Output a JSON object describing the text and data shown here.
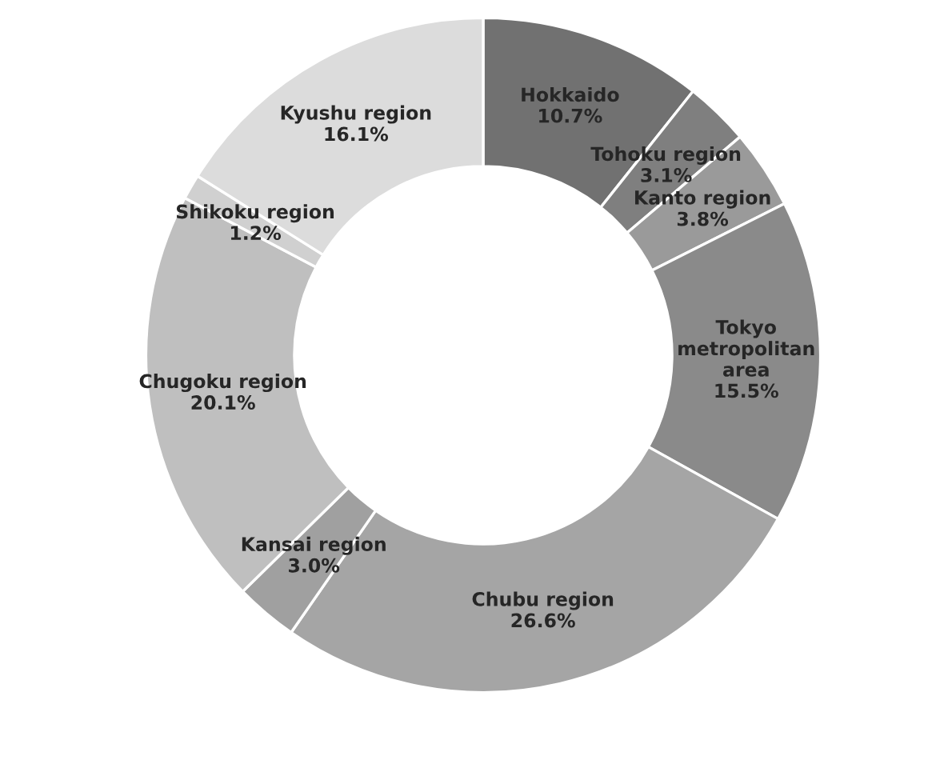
{
  "chart_data": {
    "type": "donut",
    "categories": [
      "Hokkaido",
      "Tohoku region",
      "Kanto region",
      "Tokyo\nmetropolitan\narea",
      "Chubu region",
      "Kansai region",
      "Chugoku region",
      "Shikoku region",
      "Kyushu region"
    ],
    "values": [
      10.7,
      3.1,
      3.8,
      15.5,
      26.6,
      3.0,
      20.1,
      1.2,
      16.1
    ],
    "value_labels": [
      "10.7%",
      "3.1%",
      "3.8%",
      "15.5%",
      "26.6%",
      "3.0%",
      "20.1%",
      "1.2%",
      "16.1%"
    ],
    "colors": [
      "#717171",
      "#7f7f7f",
      "#9a9a9a",
      "#8a8a8a",
      "#a5a5a5",
      "#a0a0a0",
      "#bfbfbf",
      "#d0d0d0",
      "#dcdcdc"
    ],
    "legend": false
  }
}
